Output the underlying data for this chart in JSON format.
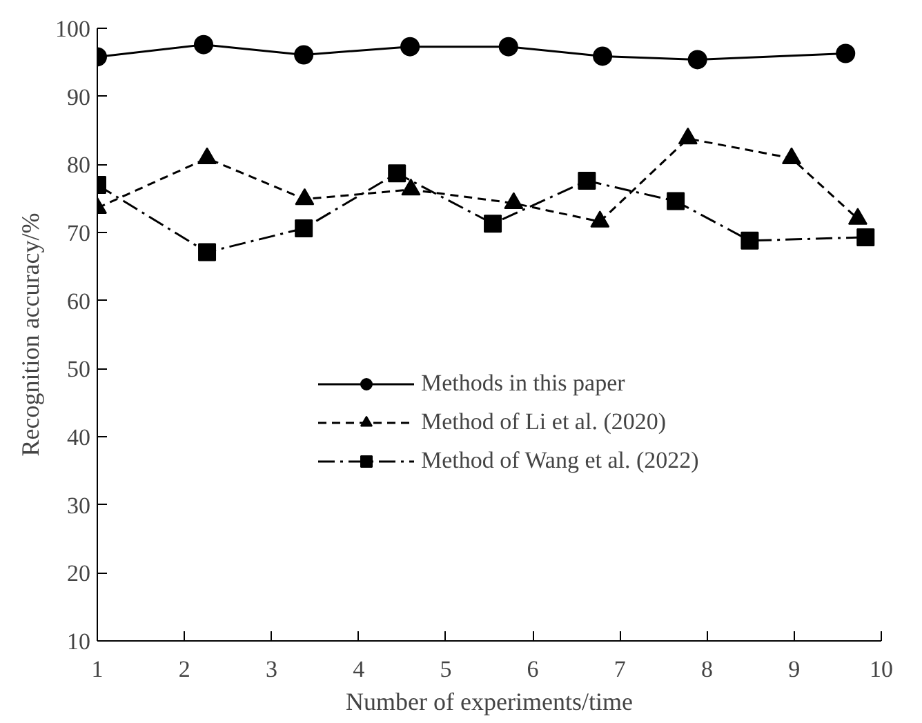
{
  "chart_data": {
    "type": "line",
    "xlabel": "Number of experiments/time",
    "ylabel": "Recognition accuracy/%",
    "xlim": [
      1,
      10
    ],
    "ylim": [
      10,
      100
    ],
    "xticks": [
      1,
      2,
      3,
      4,
      5,
      6,
      7,
      8,
      9,
      10
    ],
    "yticks": [
      10,
      20,
      30,
      40,
      50,
      60,
      70,
      80,
      90,
      100
    ],
    "grid": false,
    "legend": "right",
    "series": [
      {
        "name": "Methods in this paper",
        "color": "#000000",
        "marker": "circle",
        "line_style": "solid",
        "x": [
          1.0,
          2.22,
          3.37,
          4.59,
          5.72,
          6.8,
          7.89,
          9.59
        ],
        "values": [
          95.8,
          97.6,
          96.1,
          97.3,
          97.3,
          95.9,
          95.4,
          96.3
        ]
      },
      {
        "name": "Method of Li et al. (2020)",
        "color": "#000000",
        "marker": "triangle",
        "line_style": "dashed",
        "x": [
          1.0,
          2.26,
          3.38,
          4.6,
          5.78,
          6.77,
          7.78,
          8.97,
          9.73
        ],
        "values": [
          73.6,
          80.9,
          74.9,
          76.3,
          74.3,
          71.6,
          83.8,
          80.9,
          72.0
        ]
      },
      {
        "name": "Method of Wang et al. (2022)",
        "color": "#000000",
        "marker": "square",
        "line_style": "dashdot",
        "x": [
          1.0,
          2.26,
          3.37,
          4.44,
          5.54,
          6.62,
          7.64,
          8.49,
          9.82
        ],
        "values": [
          77.0,
          67.1,
          70.6,
          78.7,
          71.3,
          77.6,
          74.6,
          68.8,
          69.3
        ]
      }
    ]
  }
}
